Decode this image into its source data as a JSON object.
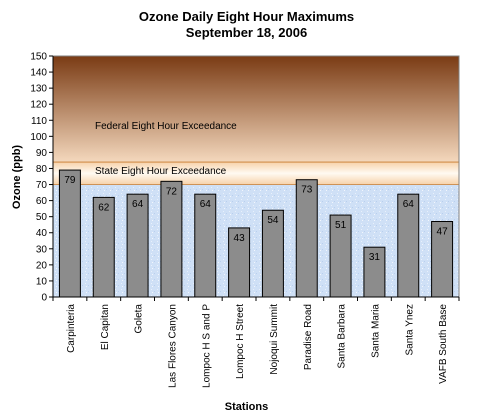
{
  "chart_data": {
    "type": "bar",
    "title": "Ozone Daily Eight Hour Maximums",
    "subtitle": "September 18, 2006",
    "xlabel": "Stations",
    "ylabel": "Ozone (ppb)",
    "ylim": [
      0,
      150
    ],
    "ytick_step": 10,
    "categories": [
      "Carpinteria",
      "El Capitan",
      "Goleta",
      "Las Flores Canyon",
      "Lompoc H S and P",
      "Lompoc H Street",
      "Nojoqui Summit",
      "Paradise Road",
      "Santa Barbara",
      "Santa Maria",
      "Santa Ynez",
      "VAFB South Base"
    ],
    "values": [
      79,
      62,
      64,
      72,
      64,
      43,
      54,
      73,
      51,
      31,
      64,
      47
    ],
    "bands": [
      {
        "label": "Federal Eight Hour Exceedance",
        "from": 84,
        "to": 150,
        "color_top": "#7a3b14",
        "color_bottom": "#f4d8bd"
      },
      {
        "label": "State Eight Hour Exceedance",
        "from": 70,
        "to": 84,
        "color_top": "#f7d2aa",
        "color_bottom": "#fffaf2"
      }
    ],
    "bar_color": "#8c8c8c",
    "plot_background": "#cfe0f6"
  }
}
